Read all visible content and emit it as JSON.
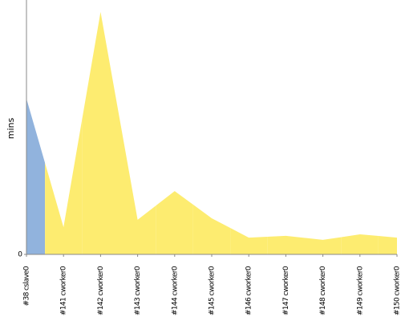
{
  "chart_data": {
    "type": "area",
    "y_label": "mins",
    "categories": [
      "#38 cslave0",
      "#141 cworker0",
      "#142 cworker0",
      "#143 cworker0",
      "#144 cworker0",
      "#145 cworker0",
      "#146 cworker0",
      "#147 cworker0",
      "#148 cworker0",
      "#149 cworker0",
      "#150 cworker0"
    ],
    "values": [
      6.12,
      1.07,
      9.53,
      1.36,
      2.49,
      1.42,
      0.66,
      0.73,
      0.57,
      0.79,
      0.66
    ],
    "point_colors": [
      "#91b3dd",
      "#fdec70",
      "#fdec70",
      "#fdec70",
      "#fdec70",
      "#fdec70",
      "#fdec70",
      "#fdec70",
      "#fdec70",
      "#fdec70",
      "#fdec70"
    ],
    "ylim": [
      0,
      10
    ],
    "yticks": [
      0
    ],
    "grid": false
  }
}
